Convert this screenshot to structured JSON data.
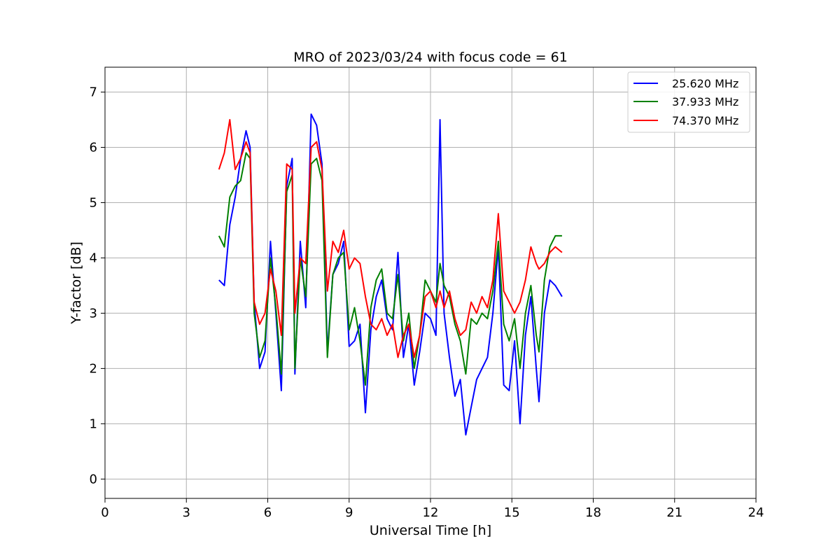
{
  "chart_data": {
    "type": "line",
    "title": "MRO of 2023/03/24 with focus code = 61",
    "xlabel": "Universal Time [h]",
    "ylabel": "Y-factor [dB]",
    "xlim": [
      0,
      24
    ],
    "ylim": [
      -0.35,
      7.45
    ],
    "xticks": [
      0,
      3,
      6,
      9,
      12,
      15,
      18,
      21,
      24
    ],
    "yticks": [
      0,
      1,
      2,
      3,
      4,
      5,
      6,
      7
    ],
    "grid": true,
    "legend_position": "top-right",
    "series": [
      {
        "name": "25.620 MHz",
        "color": "#0000ff",
        "points": [
          [
            4.2,
            3.6
          ],
          [
            4.4,
            3.5
          ],
          [
            4.6,
            4.6
          ],
          [
            4.8,
            5.1
          ],
          [
            5.0,
            5.8
          ],
          [
            5.2,
            6.3
          ],
          [
            5.35,
            6.0
          ],
          [
            5.5,
            3.2
          ],
          [
            5.7,
            2.0
          ],
          [
            5.9,
            2.3
          ],
          [
            6.1,
            4.3
          ],
          [
            6.3,
            3.0
          ],
          [
            6.5,
            1.6
          ],
          [
            6.7,
            5.3
          ],
          [
            6.9,
            5.8
          ],
          [
            7.0,
            1.9
          ],
          [
            7.2,
            4.3
          ],
          [
            7.4,
            3.1
          ],
          [
            7.6,
            6.6
          ],
          [
            7.8,
            6.4
          ],
          [
            8.0,
            5.7
          ],
          [
            8.2,
            2.3
          ],
          [
            8.4,
            3.7
          ],
          [
            8.6,
            3.9
          ],
          [
            8.8,
            4.3
          ],
          [
            9.0,
            2.4
          ],
          [
            9.2,
            2.5
          ],
          [
            9.4,
            2.8
          ],
          [
            9.6,
            1.2
          ],
          [
            9.8,
            2.7
          ],
          [
            10.0,
            3.3
          ],
          [
            10.2,
            3.6
          ],
          [
            10.4,
            2.9
          ],
          [
            10.6,
            2.7
          ],
          [
            10.8,
            4.1
          ],
          [
            11.0,
            2.2
          ],
          [
            11.2,
            2.8
          ],
          [
            11.4,
            1.7
          ],
          [
            11.6,
            2.3
          ],
          [
            11.8,
            3.0
          ],
          [
            12.0,
            2.9
          ],
          [
            12.2,
            2.6
          ],
          [
            12.35,
            6.5
          ],
          [
            12.5,
            3.0
          ],
          [
            12.7,
            2.2
          ],
          [
            12.9,
            1.5
          ],
          [
            13.1,
            1.8
          ],
          [
            13.3,
            0.8
          ],
          [
            13.5,
            1.3
          ],
          [
            13.7,
            1.8
          ],
          [
            13.9,
            2.0
          ],
          [
            14.1,
            2.2
          ],
          [
            14.3,
            3.0
          ],
          [
            14.5,
            4.2
          ],
          [
            14.7,
            1.7
          ],
          [
            14.9,
            1.6
          ],
          [
            15.1,
            2.5
          ],
          [
            15.3,
            1.0
          ],
          [
            15.5,
            2.6
          ],
          [
            15.7,
            3.3
          ],
          [
            15.9,
            2.0
          ],
          [
            16.0,
            1.4
          ],
          [
            16.2,
            3.0
          ],
          [
            16.4,
            3.6
          ],
          [
            16.6,
            3.5
          ],
          [
            16.85,
            3.3
          ]
        ]
      },
      {
        "name": "37.933 MHz",
        "color": "#008000",
        "points": [
          [
            4.2,
            4.4
          ],
          [
            4.4,
            4.2
          ],
          [
            4.6,
            5.1
          ],
          [
            4.8,
            5.3
          ],
          [
            5.0,
            5.4
          ],
          [
            5.2,
            5.9
          ],
          [
            5.35,
            5.8
          ],
          [
            5.5,
            3.0
          ],
          [
            5.7,
            2.2
          ],
          [
            5.9,
            2.5
          ],
          [
            6.1,
            4.0
          ],
          [
            6.3,
            3.1
          ],
          [
            6.5,
            1.9
          ],
          [
            6.7,
            5.2
          ],
          [
            6.9,
            5.5
          ],
          [
            7.0,
            2.0
          ],
          [
            7.2,
            4.0
          ],
          [
            7.4,
            3.3
          ],
          [
            7.6,
            5.7
          ],
          [
            7.8,
            5.8
          ],
          [
            8.0,
            5.4
          ],
          [
            8.2,
            2.2
          ],
          [
            8.4,
            3.7
          ],
          [
            8.6,
            4.0
          ],
          [
            8.8,
            4.1
          ],
          [
            9.0,
            2.7
          ],
          [
            9.2,
            3.1
          ],
          [
            9.4,
            2.5
          ],
          [
            9.6,
            1.7
          ],
          [
            9.8,
            3.1
          ],
          [
            10.0,
            3.6
          ],
          [
            10.2,
            3.8
          ],
          [
            10.4,
            3.0
          ],
          [
            10.6,
            2.9
          ],
          [
            10.8,
            3.7
          ],
          [
            11.0,
            2.5
          ],
          [
            11.2,
            3.0
          ],
          [
            11.4,
            2.0
          ],
          [
            11.6,
            2.6
          ],
          [
            11.8,
            3.6
          ],
          [
            12.0,
            3.4
          ],
          [
            12.2,
            3.2
          ],
          [
            12.35,
            3.9
          ],
          [
            12.5,
            3.5
          ],
          [
            12.7,
            3.3
          ],
          [
            12.9,
            2.8
          ],
          [
            13.1,
            2.5
          ],
          [
            13.3,
            1.9
          ],
          [
            13.5,
            2.9
          ],
          [
            13.7,
            2.8
          ],
          [
            13.9,
            3.0
          ],
          [
            14.1,
            2.9
          ],
          [
            14.3,
            3.4
          ],
          [
            14.5,
            4.3
          ],
          [
            14.7,
            2.8
          ],
          [
            14.9,
            2.5
          ],
          [
            15.1,
            2.9
          ],
          [
            15.3,
            2.0
          ],
          [
            15.5,
            3.0
          ],
          [
            15.7,
            3.5
          ],
          [
            15.9,
            2.6
          ],
          [
            16.0,
            2.3
          ],
          [
            16.2,
            3.6
          ],
          [
            16.4,
            4.2
          ],
          [
            16.6,
            4.4
          ],
          [
            16.85,
            4.4
          ]
        ]
      },
      {
        "name": "74.370 MHz",
        "color": "#ff0000",
        "points": [
          [
            4.2,
            5.6
          ],
          [
            4.4,
            5.9
          ],
          [
            4.6,
            6.5
          ],
          [
            4.8,
            5.6
          ],
          [
            5.0,
            5.8
          ],
          [
            5.2,
            6.1
          ],
          [
            5.35,
            5.9
          ],
          [
            5.5,
            3.2
          ],
          [
            5.7,
            2.8
          ],
          [
            5.9,
            3.0
          ],
          [
            6.1,
            3.8
          ],
          [
            6.3,
            3.4
          ],
          [
            6.5,
            2.6
          ],
          [
            6.7,
            5.7
          ],
          [
            6.9,
            5.6
          ],
          [
            7.0,
            3.0
          ],
          [
            7.2,
            4.0
          ],
          [
            7.4,
            3.9
          ],
          [
            7.6,
            6.0
          ],
          [
            7.8,
            6.1
          ],
          [
            8.0,
            5.6
          ],
          [
            8.2,
            3.4
          ],
          [
            8.4,
            4.3
          ],
          [
            8.6,
            4.1
          ],
          [
            8.8,
            4.5
          ],
          [
            9.0,
            3.8
          ],
          [
            9.2,
            4.0
          ],
          [
            9.4,
            3.9
          ],
          [
            9.6,
            3.3
          ],
          [
            9.8,
            2.8
          ],
          [
            10.0,
            2.7
          ],
          [
            10.2,
            2.9
          ],
          [
            10.4,
            2.6
          ],
          [
            10.6,
            2.8
          ],
          [
            10.8,
            2.2
          ],
          [
            11.0,
            2.6
          ],
          [
            11.2,
            2.8
          ],
          [
            11.4,
            2.2
          ],
          [
            11.6,
            2.6
          ],
          [
            11.8,
            3.3
          ],
          [
            12.0,
            3.4
          ],
          [
            12.2,
            3.1
          ],
          [
            12.35,
            3.4
          ],
          [
            12.5,
            3.1
          ],
          [
            12.7,
            3.4
          ],
          [
            12.9,
            2.9
          ],
          [
            13.1,
            2.6
          ],
          [
            13.3,
            2.7
          ],
          [
            13.5,
            3.2
          ],
          [
            13.7,
            3.0
          ],
          [
            13.9,
            3.3
          ],
          [
            14.1,
            3.1
          ],
          [
            14.3,
            3.6
          ],
          [
            14.5,
            4.8
          ],
          [
            14.7,
            3.4
          ],
          [
            14.9,
            3.2
          ],
          [
            15.1,
            3.0
          ],
          [
            15.3,
            3.2
          ],
          [
            15.5,
            3.6
          ],
          [
            15.7,
            4.2
          ],
          [
            15.9,
            3.9
          ],
          [
            16.0,
            3.8
          ],
          [
            16.2,
            3.9
          ],
          [
            16.4,
            4.1
          ],
          [
            16.6,
            4.2
          ],
          [
            16.85,
            4.1
          ]
        ]
      }
    ]
  }
}
